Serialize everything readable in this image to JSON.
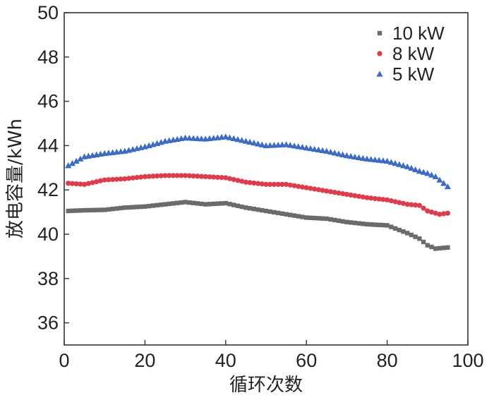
{
  "chart_data": {
    "type": "scatter",
    "xlabel": "循环次数",
    "ylabel": "放电容量/kWh",
    "xlim": [
      0,
      100
    ],
    "ylim": [
      35,
      50
    ],
    "xticks": [
      0,
      20,
      40,
      60,
      80,
      100
    ],
    "yticks": [
      36,
      38,
      40,
      42,
      44,
      46,
      48,
      50
    ],
    "grid": false,
    "legend_position": "top-right",
    "series": [
      {
        "name": "10 kW",
        "color": "#6b6b6b",
        "marker": "square",
        "points": [
          [
            1,
            41.05
          ],
          [
            5,
            41.08
          ],
          [
            10,
            41.1
          ],
          [
            15,
            41.2
          ],
          [
            20,
            41.25
          ],
          [
            25,
            41.35
          ],
          [
            30,
            41.45
          ],
          [
            35,
            41.35
          ],
          [
            40,
            41.4
          ],
          [
            45,
            41.2
          ],
          [
            50,
            41.05
          ],
          [
            55,
            40.9
          ],
          [
            60,
            40.75
          ],
          [
            65,
            40.7
          ],
          [
            70,
            40.55
          ],
          [
            75,
            40.45
          ],
          [
            80,
            40.4
          ],
          [
            85,
            40.05
          ],
          [
            88,
            39.8
          ],
          [
            90,
            39.5
          ],
          [
            92,
            39.35
          ],
          [
            95,
            39.4
          ]
        ]
      },
      {
        "name": "8 kW",
        "color": "#e23a4a",
        "marker": "circle",
        "points": [
          [
            1,
            42.3
          ],
          [
            5,
            42.25
          ],
          [
            10,
            42.45
          ],
          [
            15,
            42.5
          ],
          [
            20,
            42.6
          ],
          [
            25,
            42.65
          ],
          [
            30,
            42.65
          ],
          [
            35,
            42.6
          ],
          [
            40,
            42.55
          ],
          [
            45,
            42.35
          ],
          [
            50,
            42.25
          ],
          [
            55,
            42.25
          ],
          [
            60,
            42.1
          ],
          [
            65,
            41.95
          ],
          [
            70,
            41.8
          ],
          [
            75,
            41.65
          ],
          [
            80,
            41.55
          ],
          [
            85,
            41.35
          ],
          [
            88,
            41.3
          ],
          [
            90,
            41.05
          ],
          [
            93,
            40.9
          ],
          [
            95,
            40.95
          ]
        ]
      },
      {
        "name": "5 kW",
        "color": "#3a6bc5",
        "marker": "triangle",
        "points": [
          [
            1,
            43.1
          ],
          [
            5,
            43.5
          ],
          [
            10,
            43.65
          ],
          [
            15,
            43.75
          ],
          [
            20,
            43.95
          ],
          [
            25,
            44.2
          ],
          [
            30,
            44.35
          ],
          [
            35,
            44.3
          ],
          [
            40,
            44.4
          ],
          [
            45,
            44.2
          ],
          [
            50,
            44.0
          ],
          [
            55,
            44.05
          ],
          [
            60,
            43.9
          ],
          [
            65,
            43.75
          ],
          [
            70,
            43.55
          ],
          [
            75,
            43.4
          ],
          [
            80,
            43.3
          ],
          [
            85,
            43.05
          ],
          [
            88,
            42.85
          ],
          [
            90,
            42.75
          ],
          [
            92,
            42.6
          ],
          [
            95,
            42.15
          ]
        ]
      }
    ]
  }
}
